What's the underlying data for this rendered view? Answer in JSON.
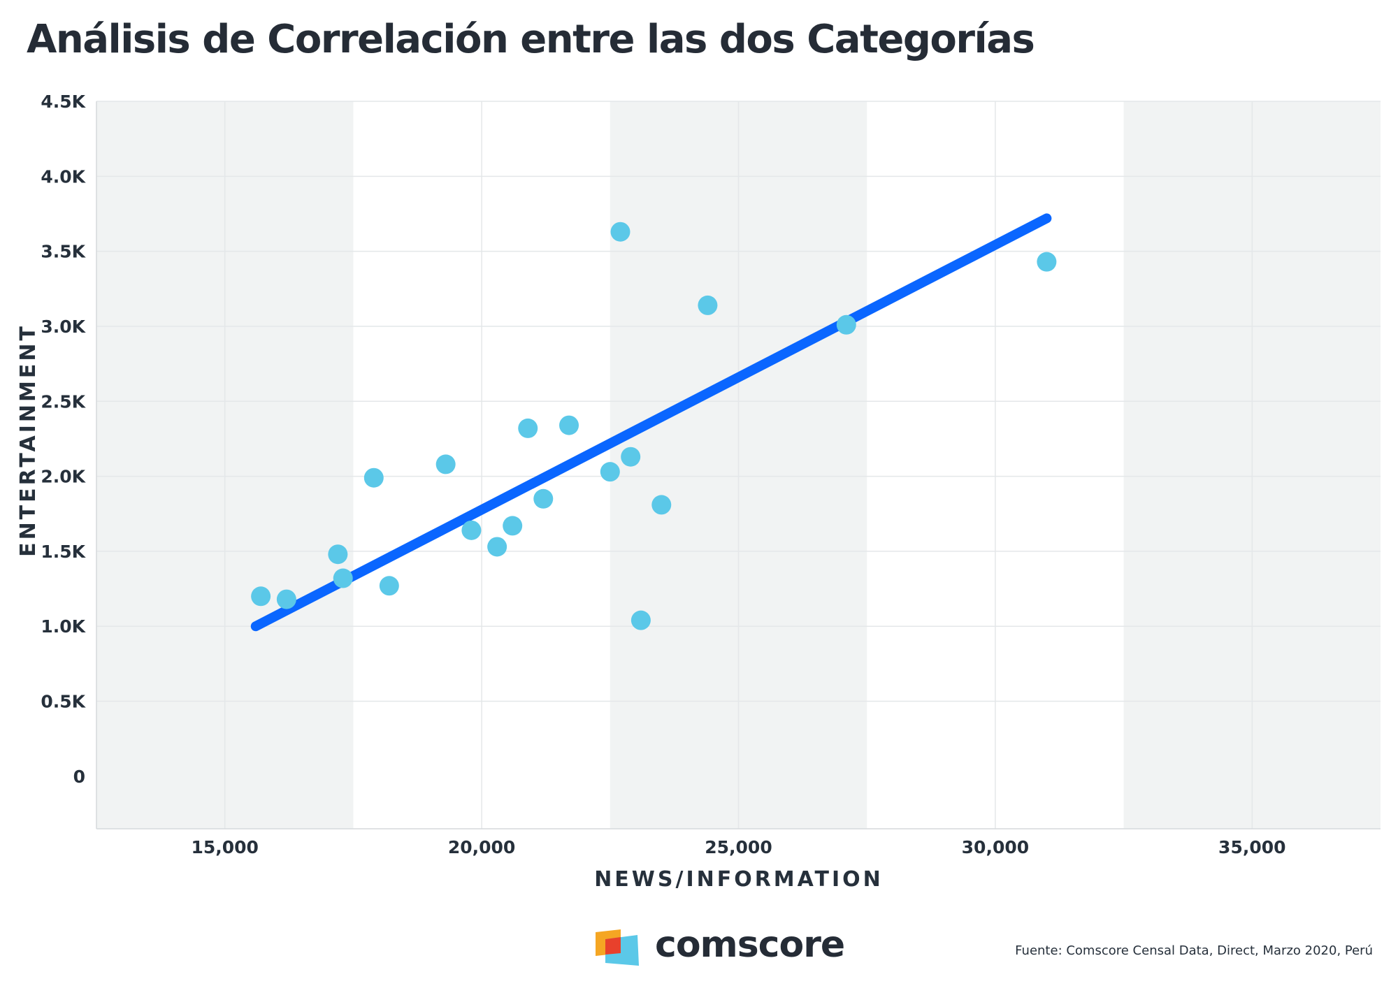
{
  "title": "Análisis de Correlación entre las dos Categorías",
  "chart_data": {
    "type": "scatter",
    "title": "Análisis de Correlación entre las dos Categorías",
    "xlabel": "NEWS/INFORMATION",
    "ylabel": "ENTERTAINMENT",
    "xlim": [
      12500,
      37500
    ],
    "ylim": [
      -350,
      4500
    ],
    "x_ticks": [
      15000,
      20000,
      25000,
      30000,
      35000
    ],
    "x_tick_labels": [
      "15,000",
      "20,000",
      "25,000",
      "30,000",
      "35,000"
    ],
    "y_ticks": [
      0,
      500,
      1000,
      1500,
      2000,
      2500,
      3000,
      3500,
      4000,
      4500
    ],
    "y_tick_labels": [
      "0",
      "0.5K",
      "1.0K",
      "1.5K",
      "2.0K",
      "2.5K",
      "3.0K",
      "3.5K",
      "4.0K",
      "4.5K"
    ],
    "grid": true,
    "points_color": "#5bc8e8",
    "trend_color": "#0a66ff",
    "background_bands": "#f1f3f3",
    "points": [
      {
        "x": 15700,
        "y": 1200
      },
      {
        "x": 16200,
        "y": 1180
      },
      {
        "x": 17200,
        "y": 1480
      },
      {
        "x": 17300,
        "y": 1320
      },
      {
        "x": 17900,
        "y": 1990
      },
      {
        "x": 18200,
        "y": 1270
      },
      {
        "x": 19300,
        "y": 2080
      },
      {
        "x": 19800,
        "y": 1640
      },
      {
        "x": 20300,
        "y": 1530
      },
      {
        "x": 20600,
        "y": 1670
      },
      {
        "x": 20900,
        "y": 2320
      },
      {
        "x": 21200,
        "y": 1850
      },
      {
        "x": 21700,
        "y": 2340
      },
      {
        "x": 22500,
        "y": 2030
      },
      {
        "x": 22700,
        "y": 3630
      },
      {
        "x": 22900,
        "y": 2130
      },
      {
        "x": 23100,
        "y": 1040
      },
      {
        "x": 23500,
        "y": 1810
      },
      {
        "x": 24400,
        "y": 3140
      },
      {
        "x": 27100,
        "y": 3010
      },
      {
        "x": 31000,
        "y": 3430
      }
    ],
    "trendline": {
      "x": [
        15600,
        31000
      ],
      "y": [
        1000,
        3720
      ]
    }
  },
  "footer": {
    "brand": "comscore",
    "source": "Fuente: Comscore Censal Data, Direct, Marzo 2020, Perú"
  }
}
